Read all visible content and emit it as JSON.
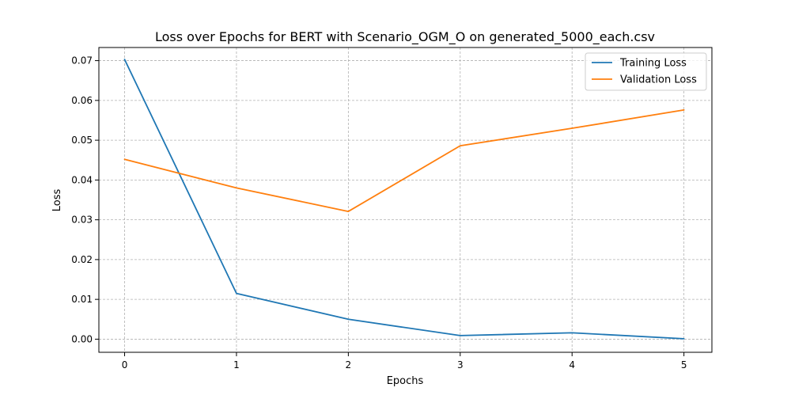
{
  "chart_data": {
    "type": "line",
    "title": "Loss over Epochs for BERT with Scenario_OGM_O on generated_5000_each.csv",
    "xlabel": "Epochs",
    "ylabel": "Loss",
    "x": [
      0,
      1,
      2,
      3,
      4,
      5
    ],
    "xlim": [
      -0.23,
      5.25
    ],
    "ylim": [
      -0.0033,
      0.0733
    ],
    "xticks": [
      0,
      1,
      2,
      3,
      4,
      5
    ],
    "xtick_labels": [
      "0",
      "1",
      "2",
      "3",
      "4",
      "5"
    ],
    "yticks": [
      0.0,
      0.01,
      0.02,
      0.03,
      0.04,
      0.05,
      0.06,
      0.07
    ],
    "ytick_labels": [
      "0.00",
      "0.01",
      "0.02",
      "0.03",
      "0.04",
      "0.05",
      "0.06",
      "0.07"
    ],
    "grid": true,
    "legend_position": "top-right",
    "series": [
      {
        "name": "Training Loss",
        "color": "#1f77b4",
        "values": [
          0.0703,
          0.0115,
          0.005,
          0.0009,
          0.0016,
          0.0001
        ]
      },
      {
        "name": "Validation Loss",
        "color": "#ff7f0e",
        "values": [
          0.0452,
          0.038,
          0.0321,
          0.0486,
          0.053,
          0.0576
        ]
      }
    ]
  }
}
